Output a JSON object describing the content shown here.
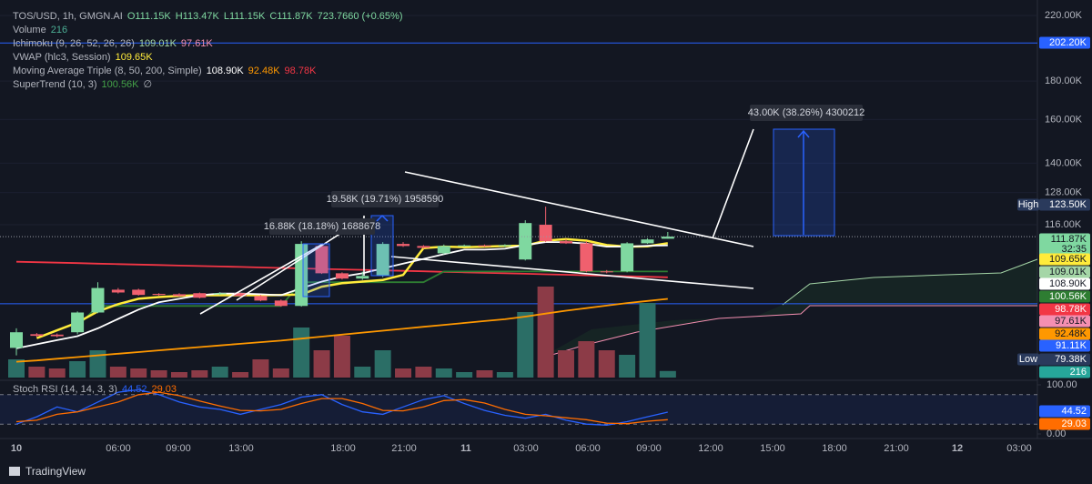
{
  "legend": [
    {
      "label": "TOS/USD, 1h, GMGN.AI",
      "values": [
        "O111.15K",
        "H113.47K",
        "L111.15K",
        "C111.87K",
        "723.7660 (+0.65%)"
      ],
      "colors": [
        "#7fd8a0",
        "#7fd8a0",
        "#7fd8a0",
        "#7fd8a0",
        "#7fd8a0"
      ]
    },
    {
      "label": "Volume",
      "values": [
        "216"
      ],
      "colors": [
        "#4caf95"
      ]
    },
    {
      "label": "Ichimoku (9, 26, 52, 26, 26)",
      "values": [
        "109.01K",
        "97.61K"
      ],
      "colors": [
        "#a5d6a7",
        "#f48fb1"
      ]
    },
    {
      "label": "VWAP (hlc3, Session)",
      "values": [
        "109.65K"
      ],
      "colors": [
        "#ffeb3b"
      ]
    },
    {
      "label": "Moving Average Triple (8, 50, 200, Simple)",
      "values": [
        "108.90K",
        "92.48K",
        "98.78K"
      ],
      "colors": [
        "#ffffff",
        "#ff9800",
        "#f23645"
      ]
    },
    {
      "label": "SuperTrend (10, 3)",
      "values": [
        "100.56K",
        "∅"
      ],
      "colors": [
        "#43a047",
        "#b2b5be"
      ]
    }
  ],
  "stoch_legend": {
    "label": "Stoch RSI (14, 14, 3, 3)",
    "values": [
      "44.52",
      "29.03"
    ],
    "colors": [
      "#2962ff",
      "#ff6d00"
    ]
  },
  "price_axis": {
    "scale": "log",
    "ylim": [
      72.7,
      224.3
    ],
    "yticks": [
      {
        "value": 220,
        "label": "220.00K"
      },
      {
        "value": 180,
        "label": "180.00K"
      },
      {
        "value": 160,
        "label": "160.00K"
      },
      {
        "value": 140,
        "label": "140.00K"
      },
      {
        "value": 128,
        "label": "128.00K"
      },
      {
        "value": 116,
        "label": "116.00K"
      }
    ]
  },
  "time_axis": [
    "10",
    "06:00",
    "09:00",
    "13:00",
    "18:00",
    "21:00",
    "11",
    "03:00",
    "06:00",
    "09:00",
    "12:00",
    "15:00",
    "18:00",
    "21:00",
    "12",
    "03:00"
  ],
  "candles": {
    "up_color": "#7fd8a0",
    "down_color": "#f0606e",
    "o": [
      79.6,
      83.0,
      82.9,
      83.5,
      88.7,
      95.1,
      95.1,
      93.9,
      93.8,
      94.1,
      93.8,
      94.1,
      93.3,
      92.0,
      90.5,
      108.7,
      100.0,
      98.4,
      99.2,
      109.4,
      108.7,
      106.3,
      108.7,
      108.9,
      108.7,
      104.3,
      116.0,
      110.3,
      109.6,
      100.6,
      100.6,
      109.6,
      111.15
    ],
    "h": [
      84.5,
      83.3,
      83.2,
      89.0,
      97.3,
      95.6,
      95.4,
      94.1,
      94.1,
      94.3,
      94.4,
      94.3,
      93.6,
      92.3,
      110.3,
      109.0,
      100.3,
      100.5,
      110.0,
      110.0,
      109.0,
      109.2,
      109.2,
      109.2,
      109.3,
      117.6,
      122.6,
      111.0,
      110.3,
      101.0,
      110.0,
      111.3,
      113.47
    ],
    "l": [
      77.8,
      82.3,
      82.2,
      83.0,
      88.5,
      94.0,
      93.4,
      93.4,
      93.1,
      92.6,
      93.6,
      93.1,
      91.8,
      90.3,
      90.3,
      99.8,
      98.1,
      98.0,
      98.8,
      108.4,
      107.8,
      106.0,
      108.4,
      108.4,
      108.4,
      104.0,
      110.0,
      109.4,
      100.3,
      100.0,
      100.3,
      109.4,
      111.15
    ],
    "c": [
      83.5,
      82.6,
      82.5,
      88.7,
      95.6,
      94.3,
      93.6,
      93.6,
      93.3,
      92.8,
      94.1,
      93.3,
      92.0,
      90.5,
      109.4,
      100.0,
      98.4,
      99.2,
      109.4,
      108.7,
      108.1,
      108.7,
      108.9,
      108.7,
      109.0,
      116.6,
      110.3,
      109.6,
      100.6,
      100.3,
      109.6,
      110.9,
      111.87
    ]
  },
  "volume": {
    "up_color": "#2b6e66",
    "down_color": "#8c3b47",
    "values": [
      600,
      360,
      300,
      540,
      900,
      360,
      300,
      240,
      180,
      240,
      360,
      180,
      600,
      300,
      1650,
      900,
      1380,
      360,
      900,
      300,
      360,
      300,
      180,
      240,
      180,
      2160,
      3000,
      900,
      1200,
      900,
      750,
      2460,
      216
    ]
  },
  "lines": [
    {
      "color": "#ff9800",
      "values": [
        76.3,
        76.6,
        77,
        77.4,
        77.8,
        78.2,
        78.6,
        79,
        79.4,
        79.8,
        80.2,
        80.6,
        81,
        81.4,
        81.9,
        82.4,
        82.9,
        83.4,
        83.9,
        84.4,
        84.9,
        85.4,
        85.9,
        86.4,
        86.9,
        87.6,
        88.4,
        89.2,
        89.9,
        90.6,
        91.3,
        91.9,
        92.48
      ]
    },
    {
      "color": "#f23645",
      "values": [
        103.6,
        103.45,
        103.3,
        103.15,
        103.0,
        102.85,
        102.7,
        102.55,
        102.4,
        102.25,
        102.1,
        101.95,
        101.8,
        101.65,
        101.5,
        101.35,
        101.2,
        101.05,
        100.9,
        100.75,
        100.6,
        100.45,
        100.3,
        100.15,
        100.0,
        99.85,
        99.7,
        99.55,
        99.4,
        99.25,
        99.1,
        98.95,
        98.78
      ]
    },
    {
      "color": "#2e7d32",
      "values": [
        null,
        null,
        null,
        85,
        90.5,
        90.5,
        90.5,
        90.5,
        90.5,
        90.5,
        90.5,
        90.5,
        90.5,
        90.5,
        97.3,
        97.3,
        97.3,
        97.3,
        97.3,
        97.3,
        97.3,
        100.56,
        100.56,
        100.56,
        100.56,
        100.56,
        100.56,
        100.56,
        100.56,
        100.56,
        100.56,
        100.56,
        100.56
      ]
    },
    {
      "color": "#ffeb3b",
      "values": [
        null,
        82,
        84,
        86,
        89,
        91,
        92.5,
        93,
        93.3,
        93.5,
        93.5,
        93.5,
        93.5,
        93.6,
        93.7,
        96,
        97,
        97.5,
        98,
        99.5,
        108,
        108.5,
        108.3,
        108.5,
        108.7,
        108.8,
        110.5,
        111,
        110.5,
        109,
        108.5,
        108.6,
        109.65
      ]
    },
    {
      "color": "#ffffff",
      "values": [
        79.5,
        80.5,
        81.5,
        82.5,
        84.5,
        87,
        89.5,
        91.5,
        92.5,
        93.5,
        94,
        94,
        93.8,
        93.5,
        95.5,
        97.5,
        99,
        100,
        101.5,
        103,
        104.5,
        106,
        107.5,
        107.5,
        107.8,
        109,
        110,
        110,
        109.5,
        108.5,
        108.5,
        108.8,
        108.9
      ]
    }
  ],
  "hlines": {
    "color": "#2962ff",
    "values": [
      202.2,
      91.11
    ]
  },
  "badges": [
    {
      "text": "202.20K",
      "bg": "#2962ff",
      "fg": "#ffffff"
    },
    {
      "tag": "High",
      "text": "123.50K",
      "bg": "#2a3a5c",
      "fg": "#ffffff"
    },
    {
      "text": "111.87K",
      "sub": "32:35",
      "bg": "#7fd8a0",
      "fg": "#131722"
    },
    {
      "text": "109.65K",
      "bg": "#ffeb3b",
      "fg": "#131722"
    },
    {
      "text": "109.01K",
      "bg": "#a5d6a7",
      "fg": "#131722"
    },
    {
      "text": "108.90K",
      "bg": "#ffffff",
      "fg": "#131722"
    },
    {
      "text": "100.56K",
      "bg": "#2e7d32",
      "fg": "#ffffff"
    },
    {
      "text": "98.78K",
      "bg": "#f23645",
      "fg": "#ffffff"
    },
    {
      "text": "97.61K",
      "bg": "#f48fb1",
      "fg": "#131722"
    },
    {
      "text": "92.48K",
      "bg": "#ff9800",
      "fg": "#131722"
    },
    {
      "text": "91.11K",
      "bg": "#2962ff",
      "fg": "#ffffff"
    },
    {
      "tag": "Low",
      "text": "79.38K",
      "bg": "#2a3a5c",
      "fg": "#ffffff"
    },
    {
      "text": "216",
      "bg": "#26a69a",
      "fg": "#ffffff"
    }
  ],
  "stoch": {
    "ylim": [
      0,
      100
    ],
    "yticks": [
      {
        "value": 100,
        "label": "100.00"
      },
      {
        "value": 0,
        "label": "0.00"
      }
    ],
    "bands": [
      80,
      20
    ],
    "k": {
      "color": "#2962ff",
      "values": [
        20,
        35,
        55,
        45,
        65,
        85,
        90,
        80,
        65,
        55,
        50,
        40,
        50,
        60,
        75,
        80,
        60,
        45,
        40,
        55,
        70,
        78,
        62,
        48,
        38,
        32,
        40,
        28,
        20,
        18,
        25,
        35,
        44.52
      ]
    },
    "d": {
      "color": "#ff6d00",
      "values": [
        25,
        28,
        40,
        45,
        55,
        65,
        80,
        85,
        78,
        67,
        57,
        48,
        47,
        50,
        62,
        72,
        72,
        62,
        48,
        47,
        55,
        68,
        70,
        63,
        50,
        40,
        37,
        33,
        29,
        22,
        21,
        26,
        29.03
      ]
    },
    "badges": [
      {
        "text": "44.52",
        "bg": "#2962ff",
        "fg": "#ffffff"
      },
      {
        "text": "29.03",
        "bg": "#ff6d00",
        "fg": "#ffffff"
      }
    ]
  },
  "measurements": [
    "16.88K (18.18%) 1688678",
    "19.58K (19.71%) 1958590",
    "43.00K (38.26%) 4300212"
  ],
  "brand": "TradingView"
}
